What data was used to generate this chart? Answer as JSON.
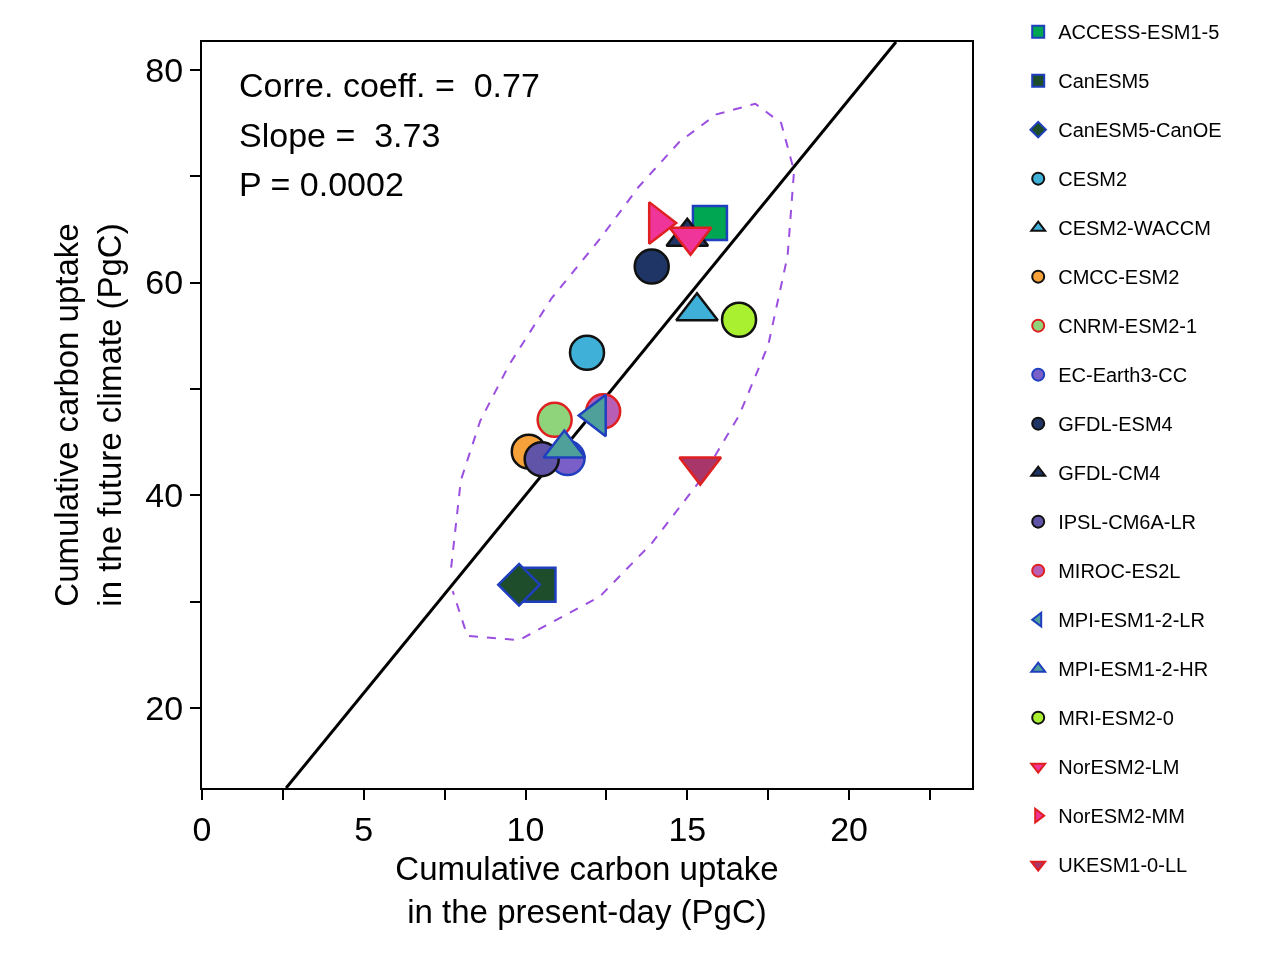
{
  "chart_data": {
    "type": "scatter",
    "xlabel": "Cumulative carbon uptake\nin the present-day (PgC)",
    "ylabel": "Cumulative carbon uptake\nin the future climate (PgC)",
    "annotations": [
      "Corre. coeff. =  0.77",
      "Slope =  3.73",
      "P = 0.0002"
    ],
    "xlim": [
      0,
      23.8
    ],
    "ylim": [
      12.5,
      82.6
    ],
    "xticks": [
      0,
      {
        "value": 2.5,
        "label": null
      },
      5,
      {
        "value": 7.5,
        "label": null
      },
      10,
      {
        "value": 12.5,
        "label": null
      },
      15,
      {
        "value": 17.5,
        "label": null
      },
      20,
      {
        "value": 22.5,
        "label": null
      }
    ],
    "yticks": [
      20,
      {
        "value": 30,
        "label": null
      },
      40,
      {
        "value": 50,
        "label": null
      },
      60,
      {
        "value": 70,
        "label": null
      },
      80
    ],
    "legend": "right",
    "series": [
      {
        "name": "ACCESS-ESM1-5",
        "color": "#00a651",
        "marker": "square",
        "x": [
          15.7
        ],
        "values": [
          65.6
        ]
      },
      {
        "name": "CanESM5",
        "color": "#1e4d2b",
        "marker": "square",
        "x": [
          10.4
        ],
        "values": [
          31.6
        ]
      },
      {
        "name": "CanESM5-CanOE",
        "color": "#1e4d2b",
        "marker": "diamond",
        "x": [
          9.8
        ],
        "values": [
          31.6
        ]
      },
      {
        "name": "CESM2",
        "color": "#3fb0d8",
        "marker": "circle",
        "x": [
          11.9
        ],
        "values": [
          53.4
        ]
      },
      {
        "name": "CESM2-WACCM",
        "color": "#3fb0d8",
        "marker": "triangle",
        "x": [
          15.3
        ],
        "values": [
          57.3
        ]
      },
      {
        "name": "CMCC-ESM2",
        "color": "#f7a13a",
        "marker": "circle",
        "x": [
          10.1
        ],
        "values": [
          44.1
        ]
      },
      {
        "name": "CNRM-ESM2-1",
        "color": "#8fd47a",
        "marker": "circle",
        "x": [
          10.9
        ],
        "values": [
          47.1
        ]
      },
      {
        "name": "EC-Earth3-CC",
        "color": "#7b5fc9",
        "marker": "circle",
        "x": [
          11.3
        ],
        "values": [
          43.5
        ]
      },
      {
        "name": "GFDL-ESM4",
        "color": "#1f3566",
        "marker": "circle",
        "x": [
          13.9
        ],
        "values": [
          61.5
        ]
      },
      {
        "name": "GFDL-CM4",
        "color": "#1f3566",
        "marker": "triangle",
        "x": [
          15.0
        ],
        "values": [
          64.3
        ]
      },
      {
        "name": "IPSL-CM6A-LR",
        "color": "#5f54a8",
        "marker": "circle",
        "x": [
          10.5
        ],
        "values": [
          43.4
        ]
      },
      {
        "name": "MIROC-ES2L",
        "color": "#b85fb5",
        "marker": "circle",
        "x": [
          12.4
        ],
        "values": [
          47.9
        ]
      },
      {
        "name": "MPI-ESM1-2-LR",
        "color": "#4f9f9a",
        "marker": "triangle-left",
        "x": [
          12.2
        ],
        "values": [
          47.5
        ]
      },
      {
        "name": "MPI-ESM1-2-HR",
        "color": "#4f9f9a",
        "marker": "triangle",
        "x": [
          11.2
        ],
        "values": [
          44.4
        ]
      },
      {
        "name": "MRI-ESM2-0",
        "color": "#a8f030",
        "marker": "circle",
        "x": [
          16.6
        ],
        "values": [
          56.5
        ]
      },
      {
        "name": "NorESM2-LM",
        "color": "#f0359a",
        "marker": "triangle-down",
        "x": [
          15.1
        ],
        "values": [
          64.3
        ]
      },
      {
        "name": "NorESM2-MM",
        "color": "#f0359a",
        "marker": "triangle-right",
        "x": [
          14.1
        ],
        "values": [
          65.6
        ]
      },
      {
        "name": "UKESM1-0-LL",
        "color": "#a8366a",
        "marker": "triangle-down",
        "x": [
          15.4
        ],
        "values": [
          42.7
        ]
      },
      {
        "type": "line",
        "color": "#000000",
        "line_style": "solid",
        "x": [
          2.6,
          21.45
        ],
        "values": [
          12.5,
          82.6
        ]
      },
      {
        "type": "line",
        "color": "#9b4fe0",
        "line_style": "dashed",
        "x": [
          7.7,
          8.0,
          8.6,
          9.5,
          10.8,
          12.3,
          13.5,
          14.75,
          15.9,
          17.1,
          17.9,
          18.3,
          18.1,
          17.5,
          16.6,
          15.4,
          13.9,
          12.3,
          9.8,
          8.2,
          7.75
        ],
        "values": [
          33.2,
          41.4,
          47.0,
          52.3,
          58.5,
          64.1,
          69.0,
          73.2,
          75.8,
          76.8,
          75.0,
          70.5,
          62.5,
          54.1,
          47.5,
          41.4,
          35.5,
          30.5,
          26.4,
          26.8,
          31.0
        ]
      }
    ]
  }
}
